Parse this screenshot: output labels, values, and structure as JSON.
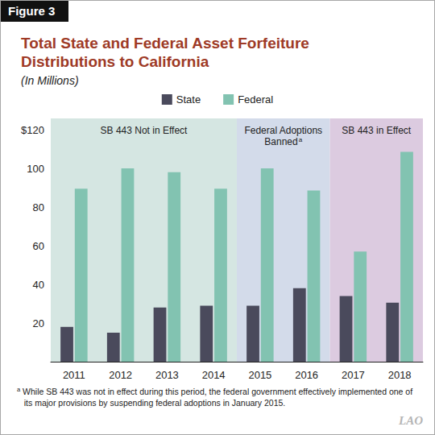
{
  "chart_data": {
    "type": "bar",
    "figure_label": "Figure 3",
    "title": "Total State and Federal Asset Forfeiture Distributions to California",
    "subtitle": "(In Millions)",
    "categories": [
      "2011",
      "2012",
      "2013",
      "2014",
      "2015",
      "2016",
      "2017",
      "2018"
    ],
    "series": [
      {
        "name": "State",
        "color": "#4a4a5c",
        "values": [
          18,
          15,
          28,
          29,
          29,
          38,
          34,
          30.5
        ]
      },
      {
        "name": "Federal",
        "color": "#82c3b1",
        "values": [
          89.5,
          100,
          98,
          89.5,
          100,
          88.5,
          57,
          108.5
        ]
      }
    ],
    "ylim": [
      0,
      120
    ],
    "yticks": [
      20,
      40,
      60,
      80,
      100,
      {
        "value": 120,
        "label": "$120"
      }
    ],
    "grid": false,
    "legend": "top",
    "periods": [
      {
        "label": "SB 443 Not in Effect",
        "from": "2011",
        "to": "2014",
        "color": "#d5e6e2"
      },
      {
        "label": "Federal Adoptions Banned",
        "footnote_mark": "a",
        "from": "2015",
        "to": "2016",
        "color": "#d3dbea"
      },
      {
        "label": "SB 443 in Effect",
        "from": "2017",
        "to": "2018",
        "color": "#dccbe0"
      }
    ],
    "footnote": {
      "mark": "a",
      "text": "While SB 443 was not in effect during this period, the federal government effectively implemented one of its major provisions by suspending federal adoptions in January 2015."
    },
    "source": "LAO"
  }
}
